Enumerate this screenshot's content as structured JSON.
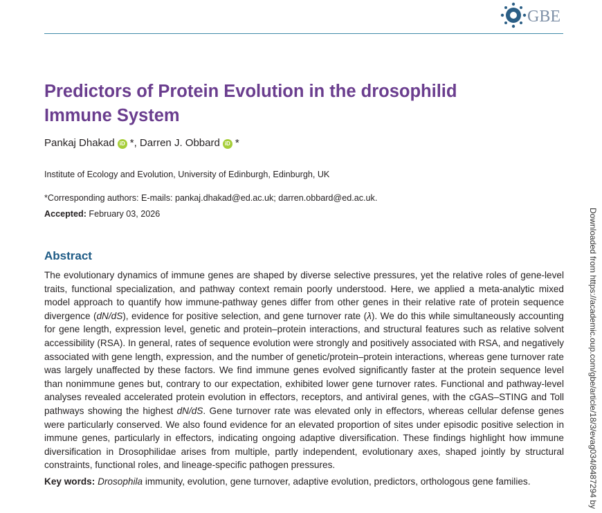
{
  "header": {
    "journal": "GBE"
  },
  "title": "Predictors of Protein Evolution in the drosophilid Immune System",
  "authors": [
    {
      "name": "Pankaj Dhakad",
      "note": "*"
    },
    {
      "name": "Darren J. Obbard",
      "note": "*"
    }
  ],
  "author_separator": ",",
  "affiliation": "Institute of Ecology and Evolution, University of Edinburgh, Edinburgh, UK",
  "correspondence": "*Corresponding authors: E-mails: pankaj.dhakad@ed.ac.uk; darren.obbard@ed.ac.uk.",
  "accepted": {
    "label": "Accepted:",
    "date": "February 03, 2026"
  },
  "abstract": {
    "heading": "Abstract",
    "parts": [
      "The evolutionary dynamics of immune genes are shaped by diverse selective pressures, yet the relative roles of gene-level traits, functional specialization, and pathway context remain poorly understood. Here, we applied a meta-analytic mixed model approach to quantify how immune-pathway genes differ from other genes in their relative rate of protein sequence divergence (",
      "dN/dS",
      "), evidence for positive selection, and gene turnover rate (",
      "λ",
      "). We do this while simultaneously accounting for gene length, expression level, genetic and protein–protein interactions, and structural features such as relative solvent accessibility (RSA). In general, rates of sequence evolution were strongly and positively associated with RSA, and negatively associated with gene length, expression, and the number of genetic/protein–protein interactions, whereas gene turnover rate was largely unaffected by these factors. We find immune genes evolved significantly faster at the protein sequence level than nonimmune genes but, contrary to our expectation, exhibited lower gene turnover rates. Functional and pathway-level analyses revealed accelerated protein evolution in effectors, receptors, and antiviral genes, with the cGAS–STING and Toll pathways showing the highest ",
      "dN/dS",
      ". Gene turnover rate was elevated only in effectors, whereas cellular defense genes were particularly conserved. We also found evidence for an elevated proportion of sites under episodic positive selection in immune genes, particularly in effectors, indicating ongoing adaptive diversification. These findings highlight how immune diversification in Drosophilidae arises from multiple, partly independent, evolutionary axes, shaped jointly by structural constraints, functional roles, and lineage-specific pathogen pressures."
    ]
  },
  "keywords": {
    "label": "Key words:",
    "first": "Drosophila",
    "rest": " immunity, evolution, gene turnover, adaptive evolution, predictors, orthologous gene families."
  },
  "side_note": "Downloaded from https://academic.oup.com/gbe/article/18/3/evag034/8487294 by"
}
